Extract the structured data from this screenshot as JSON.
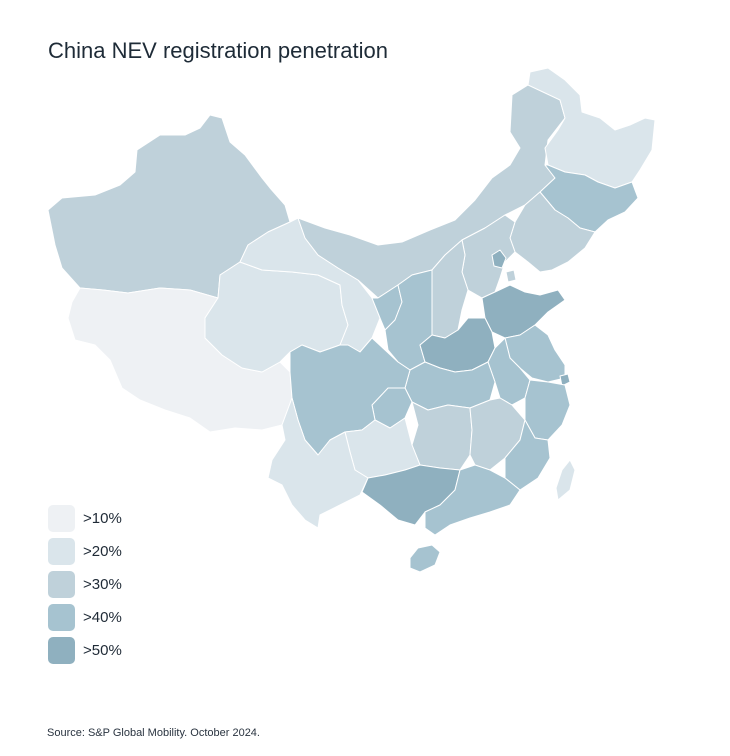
{
  "title": "China NEV registration penetration",
  "source": "Source: S&P Global Mobility. October 2024.",
  "legend": {
    "items": [
      {
        "label": ">10%",
        "color": "#eef1f4"
      },
      {
        "label": ">20%",
        "color": "#dae5eb"
      },
      {
        "label": ">30%",
        "color": "#bfd1da"
      },
      {
        "label": ">40%",
        "color": "#a6c3d0"
      },
      {
        "label": ">50%",
        "color": "#8fb0bf"
      }
    ]
  },
  "colors": {
    "background": "#ffffff",
    "border": "#ffffff",
    "text": "#1f2a36"
  }
}
